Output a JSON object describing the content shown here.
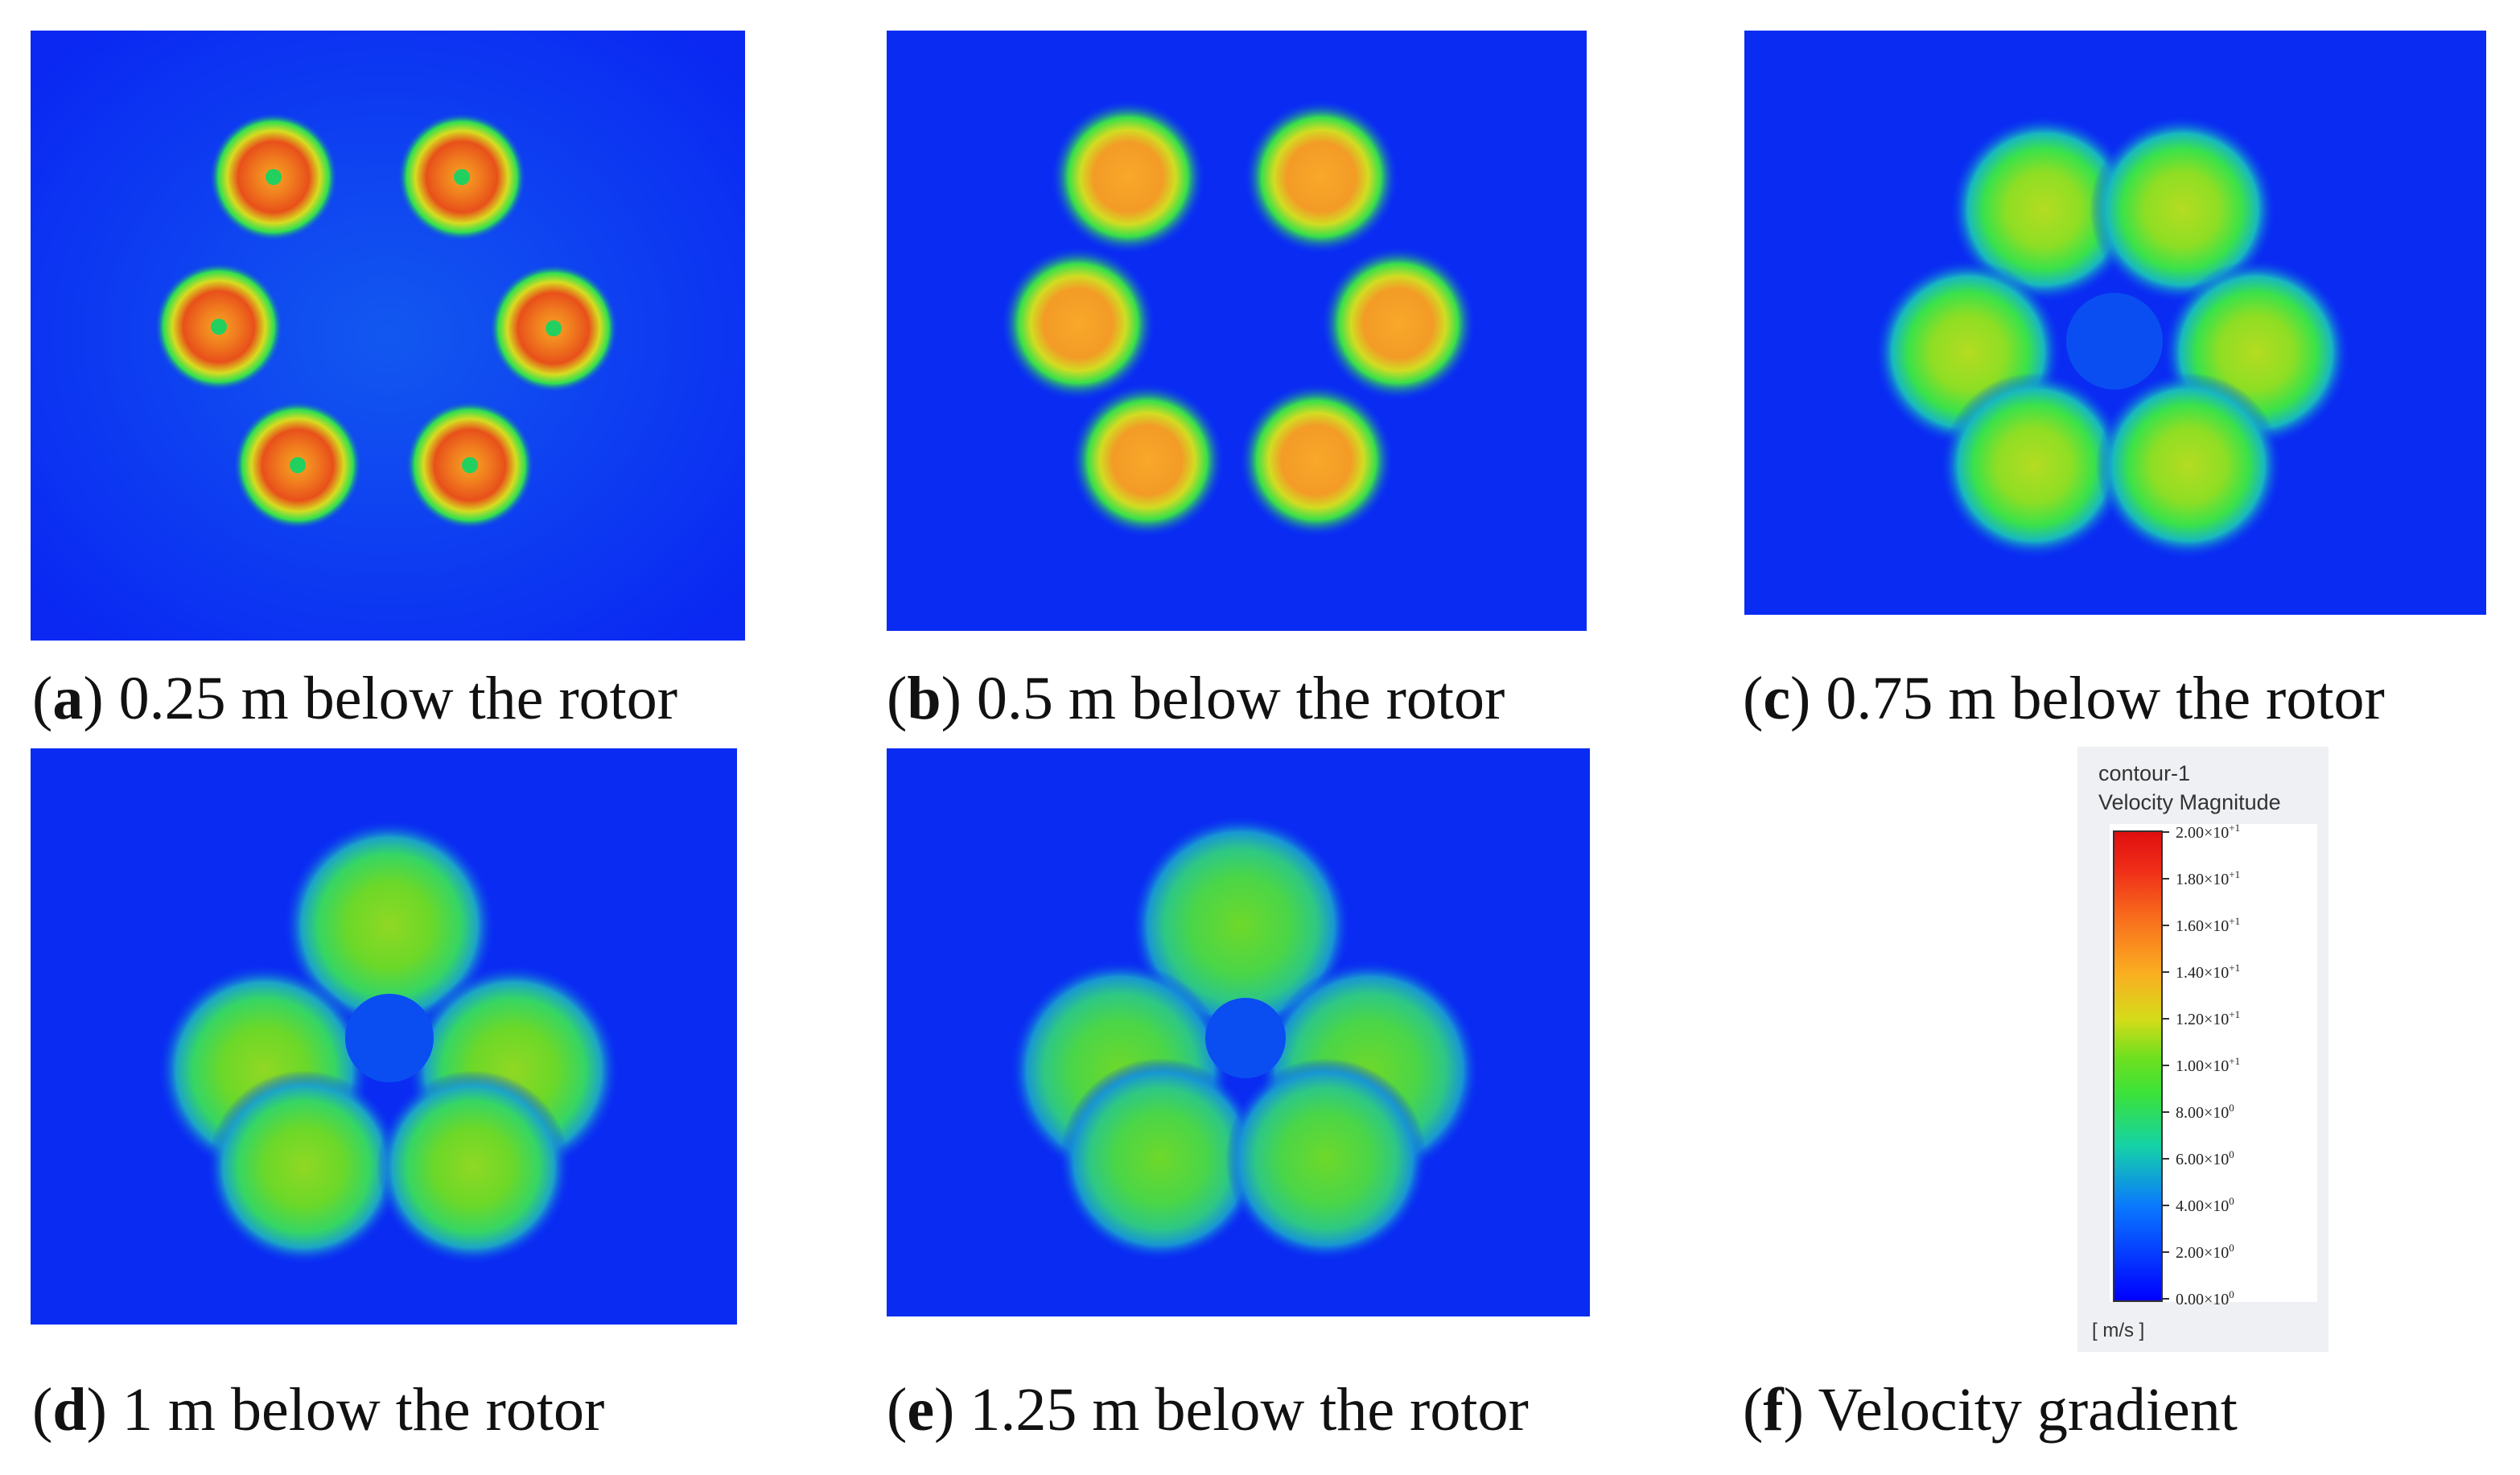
{
  "panels": [
    {
      "letter": "a",
      "text": " 0.25 m below the rotor"
    },
    {
      "letter": "b",
      "text": " 0.5 m below the rotor"
    },
    {
      "letter": "c",
      "text": " 0.75 m below the rotor"
    },
    {
      "letter": "d",
      "text": " 1 m below the rotor"
    },
    {
      "letter": "e",
      "text": " 1.25 m below the rotor"
    },
    {
      "letter": "f",
      "text": " Velocity gradient"
    }
  ],
  "legend": {
    "title": "contour-1",
    "variable": "Velocity Magnitude",
    "unit": "[ m/s ]",
    "ticks": [
      {
        "mantissa": "2.00×10",
        "exp": "+1"
      },
      {
        "mantissa": "1.80×10",
        "exp": "+1"
      },
      {
        "mantissa": "1.60×10",
        "exp": "+1"
      },
      {
        "mantissa": "1.40×10",
        "exp": "+1"
      },
      {
        "mantissa": "1.20×10",
        "exp": "+1"
      },
      {
        "mantissa": "1.00×10",
        "exp": "+1"
      },
      {
        "mantissa": "8.00×10",
        "exp": "0"
      },
      {
        "mantissa": "6.00×10",
        "exp": "0"
      },
      {
        "mantissa": "4.00×10",
        "exp": "0"
      },
      {
        "mantissa": "2.00×10",
        "exp": "0"
      },
      {
        "mantissa": "0.00×10",
        "exp": "0"
      }
    ],
    "colors": {
      "field": "#0a28f2",
      "max": "#e10f10",
      "min": "#0000ff"
    }
  }
}
